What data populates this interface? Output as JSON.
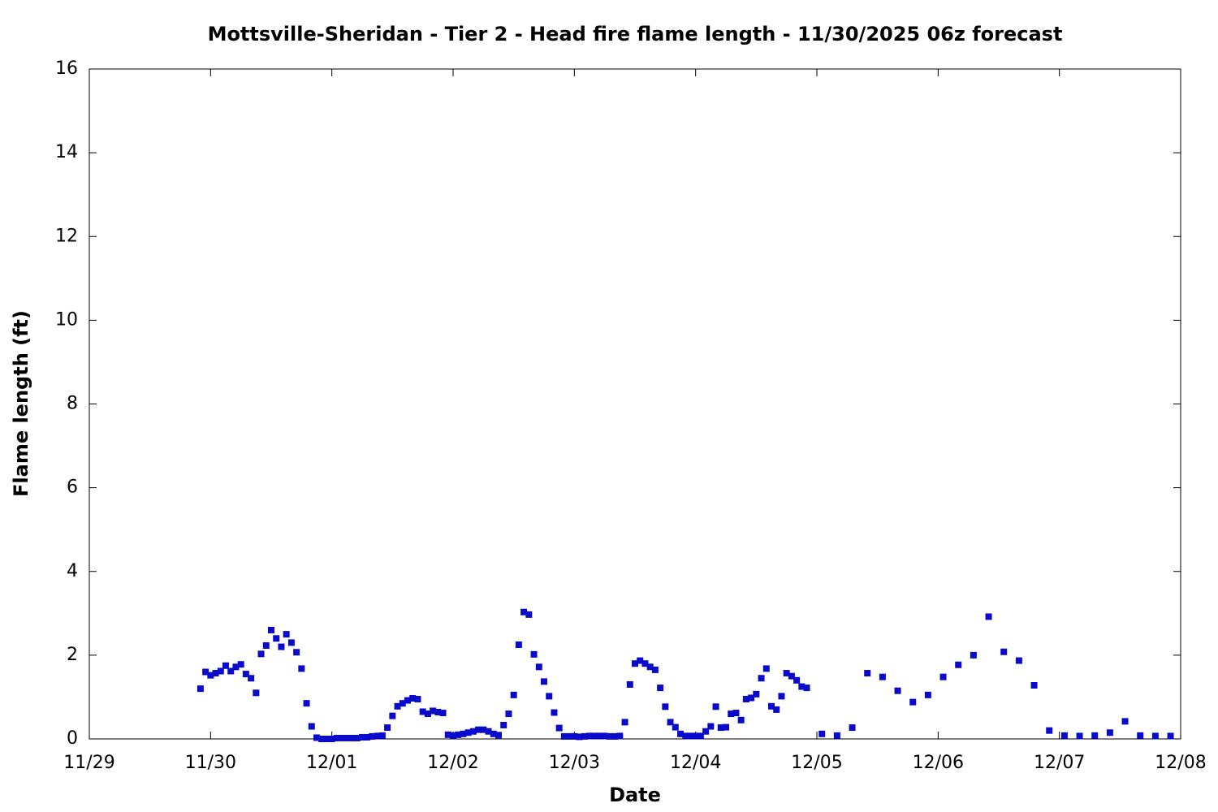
{
  "chart_data": {
    "type": "scatter",
    "title": "Mottsville-Sheridan - Tier 2 - Head fire flame length - 11/30/2025 06z forecast",
    "x_label": "Date",
    "y_label": "Flame length (ft)",
    "xlim": [
      0,
      216
    ],
    "ylim": [
      0,
      16
    ],
    "xticks": [
      {
        "value": 0,
        "label": "11/29"
      },
      {
        "value": 24,
        "label": "11/30"
      },
      {
        "value": 48,
        "label": "12/01"
      },
      {
        "value": 72,
        "label": "12/02"
      },
      {
        "value": 96,
        "label": "12/03"
      },
      {
        "value": 120,
        "label": "12/04"
      },
      {
        "value": 144,
        "label": "12/05"
      },
      {
        "value": 168,
        "label": "12/06"
      },
      {
        "value": 192,
        "label": "12/07"
      },
      {
        "value": 216,
        "label": "12/08"
      }
    ],
    "yticks": [
      0,
      2,
      4,
      6,
      8,
      10,
      12,
      14,
      16
    ],
    "color": "#0a0acc",
    "x": [
      22,
      23,
      24,
      25,
      26,
      27,
      28,
      29,
      30,
      31,
      32,
      33,
      34,
      35,
      36,
      37,
      38,
      39,
      40,
      41,
      42,
      43,
      44,
      45,
      46,
      47,
      48,
      49,
      50,
      51,
      52,
      53,
      54,
      55,
      56,
      57,
      58,
      59,
      60,
      61,
      62,
      63,
      64,
      65,
      66,
      67,
      68,
      69,
      70,
      71,
      72,
      73,
      74,
      75,
      76,
      77,
      78,
      79,
      80,
      81,
      82,
      83,
      84,
      85,
      86,
      87,
      88,
      89,
      90,
      91,
      92,
      93,
      94,
      95,
      96,
      97,
      98,
      99,
      100,
      101,
      102,
      103,
      104,
      105,
      106,
      107,
      108,
      109,
      110,
      111,
      112,
      113,
      114,
      115,
      116,
      117,
      118,
      119,
      120,
      121,
      122,
      123,
      124,
      125,
      126,
      127,
      128,
      129,
      130,
      131,
      132,
      133,
      134,
      135,
      136,
      137,
      138,
      139,
      140,
      141,
      142,
      145,
      148,
      151,
      154,
      157,
      160,
      163,
      166,
      169,
      172,
      175,
      178,
      181,
      184,
      187,
      190,
      193,
      196,
      199,
      202,
      205,
      208,
      211,
      214
    ],
    "values": [
      1.2,
      1.6,
      1.52,
      1.57,
      1.62,
      1.75,
      1.62,
      1.72,
      1.78,
      1.55,
      1.45,
      1.1,
      2.03,
      2.23,
      2.6,
      2.4,
      2.2,
      2.5,
      2.3,
      2.07,
      1.68,
      0.85,
      0.3,
      0.03,
      0,
      0,
      0,
      0.02,
      0.02,
      0.02,
      0.02,
      0.02,
      0.04,
      0.04,
      0.06,
      0.07,
      0.08,
      0.27,
      0.55,
      0.78,
      0.85,
      0.92,
      0.97,
      0.95,
      0.65,
      0.6,
      0.67,
      0.64,
      0.62,
      0.1,
      0.08,
      0.1,
      0.12,
      0.15,
      0.18,
      0.22,
      0.22,
      0.18,
      0.12,
      0.09,
      0.33,
      0.6,
      1.05,
      2.25,
      3.03,
      2.97,
      2.02,
      1.72,
      1.37,
      1.02,
      0.63,
      0.26,
      0.06,
      0.06,
      0.06,
      0.05,
      0.06,
      0.07,
      0.07,
      0.07,
      0.07,
      0.06,
      0.06,
      0.07,
      0.4,
      1.3,
      1.8,
      1.87,
      1.8,
      1.72,
      1.65,
      1.22,
      0.77,
      0.4,
      0.28,
      0.12,
      0.07,
      0.07,
      0.07,
      0.07,
      0.18,
      0.3,
      0.77,
      0.27,
      0.28,
      0.6,
      0.62,
      0.45,
      0.95,
      0.98,
      1.07,
      1.45,
      1.68,
      0.78,
      0.7,
      1.02,
      1.57,
      1.5,
      1.4,
      1.25,
      1.22,
      0.12,
      0.08,
      0.27,
      1.57,
      1.48,
      1.15,
      0.88,
      1.05,
      1.48,
      1.77,
      2.0,
      2.92,
      2.08,
      1.87,
      1.28,
      0.2,
      0.08,
      0.07,
      0.08,
      0.15,
      0.42,
      0.08,
      0.07,
      0.07
    ]
  }
}
